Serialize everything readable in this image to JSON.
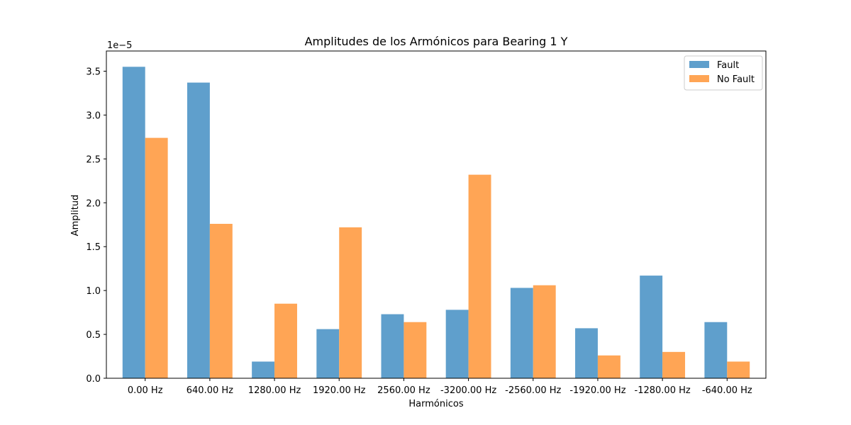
{
  "chart_data": {
    "type": "bar",
    "title": "Amplitudes de los Armónicos para Bearing 1 Y",
    "xlabel": "Harmónicos",
    "ylabel": "Amplitud",
    "y_offset_label": "1e−5",
    "y_scale": 1e-05,
    "ylim": [
      0,
      3.73
    ],
    "yticks": [
      0.0,
      0.5,
      1.0,
      1.5,
      2.0,
      2.5,
      3.0,
      3.5
    ],
    "ytick_labels": [
      "0.0",
      "0.5",
      "1.0",
      "1.5",
      "2.0",
      "2.5",
      "3.0",
      "3.5"
    ],
    "grid": false,
    "legend_position": "top-right",
    "categories": [
      "0.00 Hz",
      "640.00 Hz",
      "1280.00 Hz",
      "1920.00 Hz",
      "2560.00 Hz",
      "-3200.00 Hz",
      "-2560.00 Hz",
      "-1920.00 Hz",
      "-1280.00 Hz",
      "-640.00 Hz"
    ],
    "series": [
      {
        "name": "Fault",
        "color": "#5f9fcc",
        "values": [
          3.55,
          3.37,
          0.19,
          0.56,
          0.73,
          0.78,
          1.03,
          0.57,
          1.17,
          0.64
        ]
      },
      {
        "name": "No Fault",
        "color": "#ffa555",
        "values": [
          2.74,
          1.76,
          0.85,
          1.72,
          0.64,
          2.32,
          1.06,
          0.26,
          0.3,
          0.19
        ]
      }
    ]
  }
}
